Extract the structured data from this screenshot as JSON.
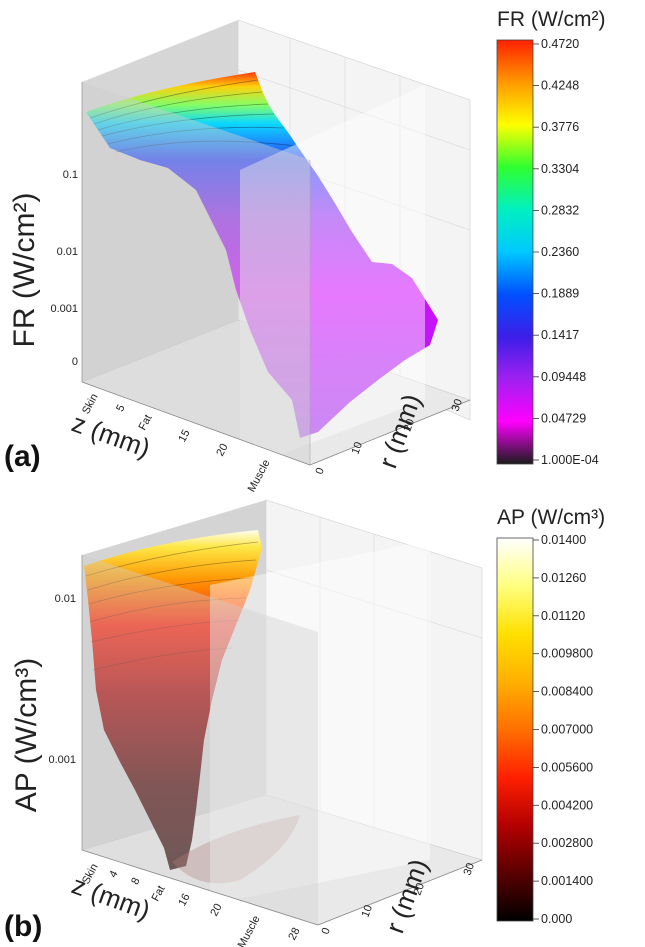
{
  "chart_data": [
    {
      "type": "surface",
      "panel_label": "(a)",
      "zlabel": "FR (W/cm²)",
      "xlabel": "z (mm)",
      "ylabel": "r (mm)",
      "z_scale": "log",
      "z_ticks": [
        "0.1",
        "0.01",
        "0.001",
        "0"
      ],
      "x_ticks": [
        "Skin",
        "5",
        "Fat",
        "15",
        "20",
        "Muscle"
      ],
      "y_ticks": [
        "0",
        "10",
        "20",
        "30"
      ],
      "colorbar": {
        "title": "FR (W/cm²)",
        "colormap": "rainbow",
        "colors": [
          "#1a1a1a",
          "#ff00ff",
          "#a020f0",
          "#3c1ee8",
          "#0050ff",
          "#00c8ff",
          "#00f0c0",
          "#30ff30",
          "#ffff00",
          "#ff9900",
          "#ff2000"
        ],
        "ticks": [
          "0.4720",
          "0.4248",
          "0.3776",
          "0.3304",
          "0.2832",
          "0.2360",
          "0.1889",
          "0.1417",
          "0.09448",
          "0.04729",
          "1.000E-04"
        ],
        "range": [
          0.0001,
          0.472
        ]
      }
    },
    {
      "type": "surface",
      "panel_label": "(b)",
      "zlabel": "AP (W/cm³)",
      "xlabel": "z (mm)",
      "ylabel": "r (mm)",
      "z_scale": "log",
      "z_ticks": [
        "0.01",
        "0.001"
      ],
      "x_ticks": [
        "Skin",
        "4",
        "8",
        "Fat",
        "16",
        "20",
        "Muscle",
        "28"
      ],
      "y_ticks": [
        "0",
        "10",
        "20",
        "30"
      ],
      "colorbar": {
        "title": "AP (W/cm³)",
        "colormap": "black-red-yellow-white",
        "colors": [
          "#000000",
          "#5a0000",
          "#b40000",
          "#ff2000",
          "#ff7000",
          "#ffb000",
          "#ffe000",
          "#ffff80",
          "#ffffff"
        ],
        "ticks": [
          "0.01400",
          "0.01260",
          "0.01120",
          "0.009800",
          "0.008400",
          "0.007000",
          "0.005600",
          "0.004200",
          "0.002800",
          "0.001400",
          "0.000"
        ],
        "range": [
          0,
          0.014
        ]
      }
    }
  ]
}
